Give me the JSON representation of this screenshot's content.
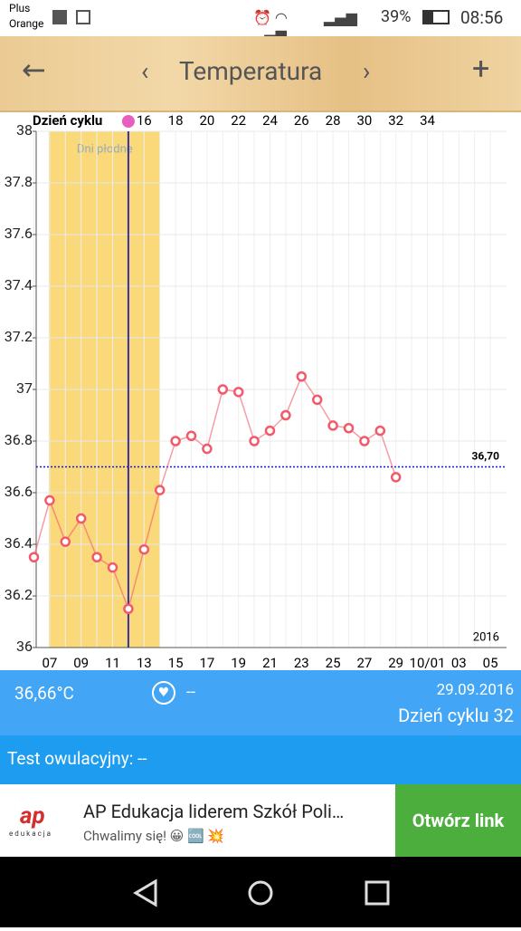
{
  "status_bar": {
    "carrier_line1": "Plus",
    "carrier_line2": "Orange",
    "battery": "39%",
    "time": "08:56"
  },
  "toolbar": {
    "title": "Temperatura"
  },
  "chart_data": {
    "type": "line",
    "top_axis_title": "Dzień cyklu",
    "fertile_label": "Dni płodne",
    "year_label": "2016",
    "categories": [
      null,
      "07",
      null,
      "09",
      null,
      "11",
      null,
      "13",
      null,
      "15",
      null,
      "17",
      null,
      "19",
      null,
      "21",
      null,
      "23",
      null,
      "25",
      null,
      "27",
      null,
      "29",
      null,
      "10/01",
      null,
      "03",
      null,
      "05"
    ],
    "top_categories": [
      null,
      null,
      null,
      null,
      null,
      null,
      null,
      "16",
      null,
      "18",
      null,
      "20",
      null,
      "22",
      null,
      "24",
      null,
      "26",
      null,
      "28",
      null,
      "30",
      null,
      "32",
      null,
      "34",
      null,
      null,
      null,
      null
    ],
    "series": [
      {
        "name": "Temperatura",
        "color": "#f25a6a",
        "values": [
          36.35,
          36.57,
          36.41,
          36.5,
          36.35,
          36.31,
          36.15,
          36.38,
          36.61,
          36.8,
          36.82,
          36.77,
          37.0,
          36.99,
          36.8,
          36.84,
          36.9,
          37.05,
          36.96,
          36.86,
          36.85,
          36.8,
          36.84,
          36.66,
          null,
          null,
          null,
          null,
          null,
          null
        ]
      }
    ],
    "reference_line": {
      "value": 36.7,
      "label": "36,70",
      "color": "#1a1acc"
    },
    "ylim": [
      36,
      38
    ],
    "yticks": [
      36,
      36.2,
      36.4,
      36.6,
      36.8,
      37,
      37.2,
      37.4,
      37.6,
      37.8,
      38
    ],
    "grid": true
  },
  "info": {
    "temperature": "36,66°C",
    "heart": "--",
    "date": "29.09.2016",
    "cycle_day": "Dzień cyklu 32",
    "ovulation_test": "Test owulacyjny: --"
  },
  "ad": {
    "brand": "ap",
    "brand_sub": "edukacja",
    "title": "AP Edukacja liderem Szkół Poli…",
    "subtitle": "Chwalimy się! 😀 🆒 💥",
    "button": "Otwórz link"
  }
}
